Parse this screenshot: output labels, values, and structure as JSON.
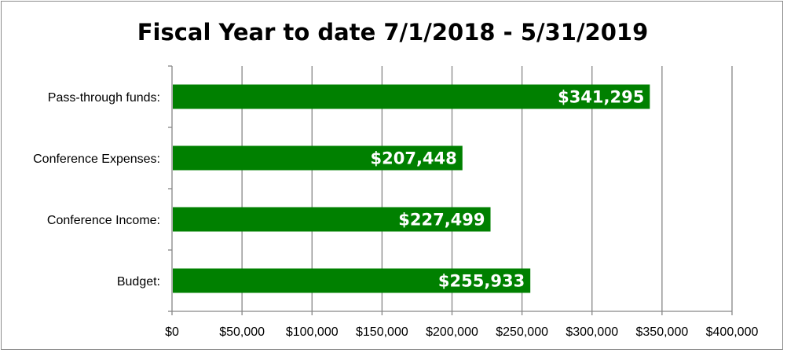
{
  "chart_data": {
    "type": "bar",
    "orientation": "horizontal",
    "title": "Fiscal Year to date 7/1/2018 - 5/31/2019",
    "categories": [
      "Budget:",
      "Conference Income:",
      "Conference Expenses:",
      "Pass-through funds:"
    ],
    "values": [
      255933,
      227499,
      207448,
      341295
    ],
    "data_labels": [
      "$255,933",
      "$227,499",
      "$207,448",
      "$341,295"
    ],
    "xlim": [
      0,
      400000
    ],
    "x_ticks": [
      0,
      50000,
      100000,
      150000,
      200000,
      250000,
      300000,
      350000,
      400000
    ],
    "x_tick_labels": [
      "$0",
      "$50,000",
      "$100,000",
      "$150,000",
      "$200,000",
      "$250,000",
      "$300,000",
      "$350,000",
      "$400,000"
    ],
    "xlabel": "",
    "ylabel": "",
    "grid": "vertical",
    "legend": "none",
    "colors": {
      "bar": "#008000",
      "gridline": "#868686",
      "axis": "#868686",
      "data_label_text": "#ffffff"
    }
  }
}
